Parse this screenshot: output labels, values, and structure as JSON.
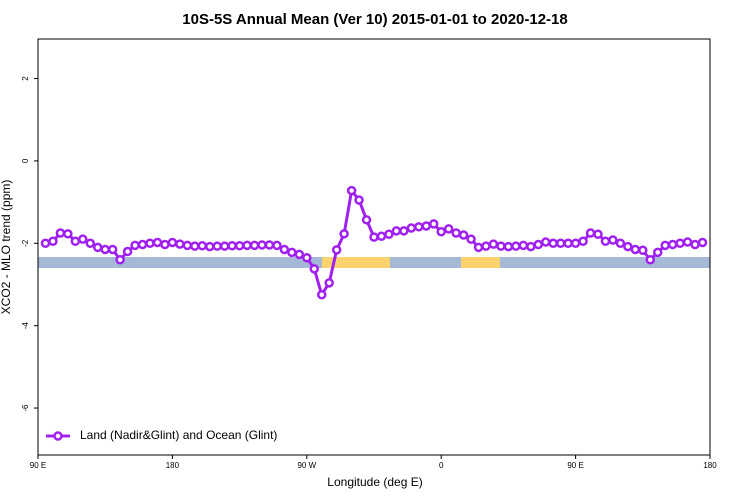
{
  "chart_data": {
    "type": "line",
    "title": "10S-5S Annual Mean (Ver 10)   2015-01-01 to 2020-12-18",
    "x_label": "Longitude (deg E)",
    "y_label": "XCO2 - MLO trend (ppm)",
    "x": [
      95,
      100,
      105,
      110,
      115,
      120,
      125,
      130,
      135,
      140,
      145,
      150,
      155,
      160,
      165,
      170,
      175,
      180,
      185,
      190,
      195,
      200,
      205,
      210,
      215,
      220,
      225,
      230,
      235,
      240,
      245,
      250,
      255,
      260,
      265,
      270,
      275,
      280,
      285,
      290,
      295,
      300,
      305,
      310,
      315,
      320,
      325,
      330,
      335,
      340,
      345,
      350,
      355,
      360,
      365,
      370,
      375,
      380,
      385,
      390,
      395,
      400,
      405,
      410,
      415,
      420,
      425,
      430,
      435,
      440,
      445,
      450,
      455,
      460,
      465,
      470,
      475,
      480,
      485,
      490,
      495,
      500,
      505,
      510,
      515,
      520,
      525,
      530,
      535
    ],
    "series": [
      {
        "name": "Land (Nadir&Glint) and Ocean (Glint)",
        "color": "#a020f0",
        "values": [
          -2.0,
          -1.95,
          -1.75,
          -1.77,
          -1.95,
          -1.9,
          -2.0,
          -2.1,
          -2.15,
          -2.15,
          -2.4,
          -2.2,
          -2.05,
          -2.03,
          -2.0,
          -1.98,
          -2.03,
          -1.98,
          -2.02,
          -2.05,
          -2.07,
          -2.06,
          -2.08,
          -2.07,
          -2.07,
          -2.06,
          -2.06,
          -2.05,
          -2.05,
          -2.04,
          -2.04,
          -2.05,
          -2.15,
          -2.22,
          -2.27,
          -2.35,
          -2.62,
          -3.25,
          -2.96,
          -2.16,
          -1.77,
          -0.72,
          -0.95,
          -1.43,
          -1.85,
          -1.83,
          -1.78,
          -1.7,
          -1.7,
          -1.63,
          -1.6,
          -1.58,
          -1.53,
          -1.72,
          -1.65,
          -1.75,
          -1.8,
          -1.9,
          -2.1,
          -2.07,
          -2.02,
          -2.07,
          -2.08,
          -2.07,
          -2.05,
          -2.08,
          -2.03,
          -1.97,
          -2.0,
          -2.0,
          -2.0,
          -2.0,
          -1.95,
          -1.75,
          -1.78,
          -1.95,
          -1.92,
          -2.0,
          -2.08,
          -2.15,
          -2.17,
          -2.4,
          -2.22,
          -2.05,
          -2.03,
          -2.0,
          -1.97,
          -2.03,
          -1.98
        ]
      }
    ],
    "xlim": [
      90,
      540
    ],
    "xticks": [
      {
        "value": 90,
        "label": "90 E"
      },
      180,
      {
        "value": 270,
        "label": "90 W"
      },
      {
        "value": 360,
        "label": "0"
      },
      {
        "value": 450,
        "label": "90 E"
      },
      {
        "value": 540,
        "label": "180"
      }
    ],
    "ylim": [
      -7.14,
      2.96
    ],
    "yticks": [
      -6,
      -4,
      -2,
      0,
      2
    ],
    "legend": "bottom-left"
  }
}
